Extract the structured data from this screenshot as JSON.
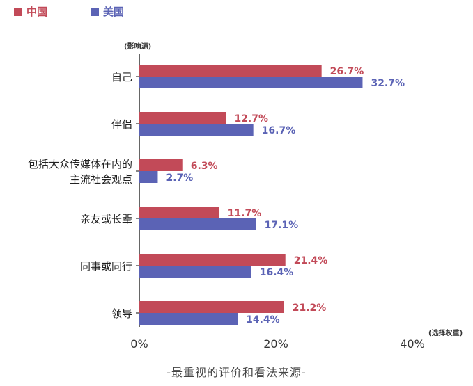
{
  "legend": [
    {
      "name": "中国",
      "color": "#c24a58"
    },
    {
      "name": "美国",
      "color": "#5b63b5"
    }
  ],
  "yaxis_note": "(影响源)",
  "xaxis_note": "(选择权重)",
  "caption": "-最重视的评价和看法来源-",
  "chart_data": {
    "type": "bar",
    "orientation": "horizontal",
    "categories": [
      [
        "自己"
      ],
      [
        "伴侣"
      ],
      [
        "包括大众传媒体在内的",
        "主流社会观点"
      ],
      [
        "亲友或长辈"
      ],
      [
        "同事或同行"
      ],
      [
        "领导"
      ]
    ],
    "series": [
      {
        "name": "中国",
        "color": "#c24a58",
        "values": [
          26.7,
          12.7,
          6.3,
          11.7,
          21.4,
          21.2
        ],
        "labels": [
          "26.7%",
          "12.7%",
          "6.3%",
          "11.7%",
          "21.4%",
          "21.2%"
        ]
      },
      {
        "name": "美国",
        "color": "#5b63b5",
        "values": [
          32.7,
          16.7,
          2.7,
          17.1,
          16.4,
          14.4
        ],
        "labels": [
          "32.7%",
          "16.7%",
          "2.7%",
          "17.1%",
          "16.4%",
          "14.4%"
        ]
      }
    ],
    "xlim": [
      0,
      40
    ],
    "xticks": [
      0,
      20,
      40
    ],
    "xtick_labels": [
      "0%",
      "20%",
      "40%"
    ],
    "grid": false
  }
}
